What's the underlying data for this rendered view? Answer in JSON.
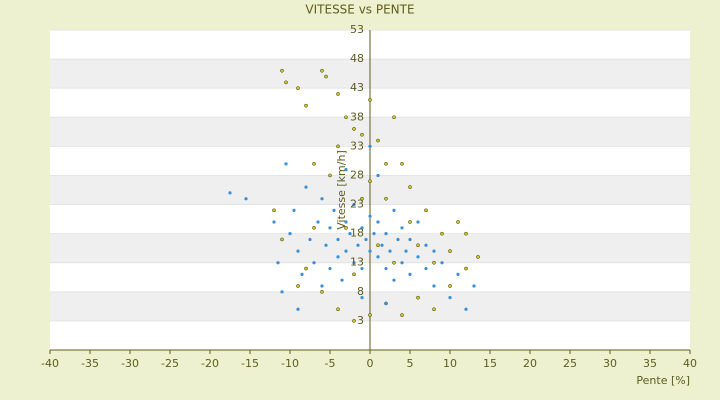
{
  "chart_data": {
    "type": "scatter",
    "title": "VITESSE vs PENTE",
    "x_label": "Pente [%]",
    "y_label": "Vitesse [km/h]",
    "xlim": [
      -40,
      40
    ],
    "xticks": [
      -40,
      -35,
      -30,
      -25,
      -20,
      -15,
      -10,
      -5,
      0,
      5,
      10,
      15,
      20,
      25,
      30,
      35,
      40
    ],
    "ylim": [
      -2,
      53
    ],
    "yticks": [
      3,
      8,
      13,
      18,
      23,
      28,
      33,
      38,
      43,
      48,
      53
    ],
    "series": [
      {
        "color": "#c8c832",
        "x": [
          -11,
          -10.5,
          -9,
          -8,
          -6,
          -5.5,
          -4,
          -3,
          -2,
          -1,
          0,
          1,
          2,
          3,
          -7,
          -5,
          -12,
          -11,
          -8,
          -6,
          -4,
          -2,
          0,
          2,
          4,
          6,
          8,
          10,
          12,
          13.5,
          11,
          9,
          7,
          5,
          4,
          -1,
          -3,
          1,
          3,
          -2,
          6,
          8,
          -9,
          -7,
          0,
          2,
          -4,
          5,
          10,
          12
        ],
        "y": [
          46,
          44,
          43,
          40,
          46,
          45,
          42,
          38,
          36,
          35,
          41,
          34,
          30,
          38,
          30,
          28,
          22,
          17,
          12,
          8,
          5,
          3,
          4,
          6,
          4,
          7,
          5,
          9,
          12,
          14,
          20,
          18,
          22,
          26,
          30,
          24,
          19,
          16,
          13,
          11,
          16,
          13,
          9,
          19,
          27,
          24,
          33,
          20,
          15,
          18
        ]
      },
      {
        "color": "#3a8fd6",
        "x": [
          -17.5,
          -15.5,
          -12,
          -11.5,
          -11,
          -10.5,
          -10,
          -9.5,
          -9,
          -8.5,
          -8,
          -7.5,
          -7,
          -6.5,
          -6,
          -6,
          -5.5,
          -5,
          -5,
          -4.5,
          -4,
          -4,
          -3.5,
          -3,
          -3,
          -2.5,
          -2,
          -2,
          -1.5,
          -1,
          -1,
          -0.5,
          0,
          0,
          0.5,
          1,
          1,
          1.5,
          2,
          2,
          2.5,
          3,
          3,
          3.5,
          4,
          4,
          4.5,
          5,
          5,
          6,
          6,
          7,
          7,
          8,
          8,
          9,
          10,
          11,
          12,
          13,
          -9,
          -1,
          2,
          -3,
          1,
          0
        ],
        "y": [
          25,
          24,
          20,
          13,
          8,
          30,
          18,
          22,
          15,
          11,
          26,
          17,
          13,
          20,
          9,
          24,
          16,
          12,
          19,
          22,
          14,
          17,
          10,
          20,
          15,
          18,
          13,
          23,
          16,
          19,
          12,
          17,
          15,
          21,
          18,
          14,
          20,
          16,
          12,
          18,
          15,
          22,
          10,
          17,
          13,
          19,
          15,
          11,
          17,
          14,
          20,
          12,
          16,
          9,
          15,
          13,
          7,
          11,
          5,
          9,
          5,
          7,
          6,
          29,
          28,
          33
        ]
      }
    ]
  }
}
